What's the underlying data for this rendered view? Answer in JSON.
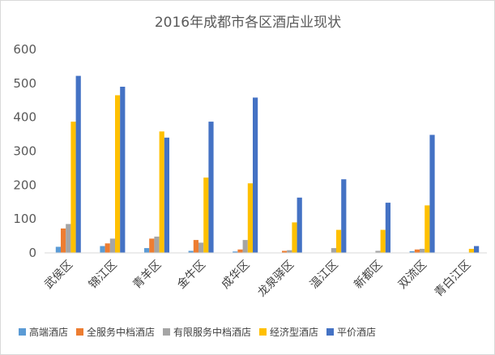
{
  "chart_data": {
    "type": "bar",
    "title": "2016年成都市各区酒店业现状",
    "categories": [
      "武侯区",
      "锦江区",
      "青羊区",
      "金牛区",
      "成华区",
      "龙泉驿区",
      "温江区",
      "新都区",
      "双流区",
      "青白江区"
    ],
    "series": [
      {
        "name": "高端酒店",
        "color": "#5b9bd5",
        "values": [
          18,
          20,
          14,
          6,
          4,
          0,
          0,
          0,
          5,
          0
        ]
      },
      {
        "name": "全服务中档酒店",
        "color": "#ed7d31",
        "values": [
          72,
          28,
          42,
          38,
          10,
          6,
          0,
          0,
          10,
          0
        ]
      },
      {
        "name": "有限服务中档酒店",
        "color": "#a5a5a5",
        "values": [
          85,
          42,
          48,
          30,
          38,
          8,
          14,
          6,
          12,
          0
        ]
      },
      {
        "name": "经济型酒店",
        "color": "#ffc000",
        "values": [
          387,
          465,
          358,
          222,
          205,
          90,
          68,
          68,
          140,
          12
        ]
      },
      {
        "name": "平价酒店",
        "color": "#4472c4",
        "values": [
          522,
          490,
          340,
          387,
          458,
          163,
          217,
          148,
          348,
          20
        ]
      }
    ],
    "yticks": [
      0,
      100,
      200,
      300,
      400,
      500,
      600
    ],
    "ylim": [
      0,
      600
    ],
    "grid": false,
    "legend": "bottom"
  }
}
